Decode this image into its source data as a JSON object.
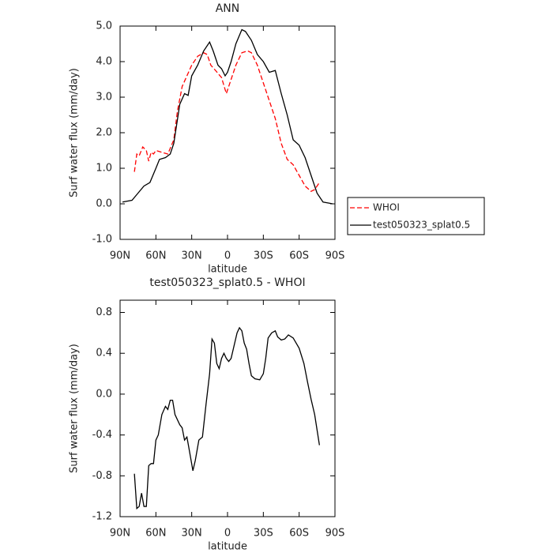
{
  "chart_data": [
    {
      "type": "line",
      "title": "ANN",
      "x_label": "latitude",
      "y_label": "Surf water flux (mm/day)",
      "xlim": [
        90,
        -90
      ],
      "ylim": [
        -1,
        5
      ],
      "xticks": [
        {
          "value": 90,
          "label": "90N"
        },
        {
          "value": 60,
          "label": "60N"
        },
        {
          "value": 30,
          "label": "30N"
        },
        0,
        {
          "value": -30,
          "label": "30S"
        },
        {
          "value": -60,
          "label": "60S"
        },
        {
          "value": -90,
          "label": "90S"
        }
      ],
      "yticks": [
        {
          "value": -1,
          "label": "-1.0"
        },
        {
          "value": 0,
          "label": "0.0"
        },
        {
          "value": 1,
          "label": "1.0"
        },
        {
          "value": 2,
          "label": "2.0"
        },
        {
          "value": 3,
          "label": "3.0"
        },
        {
          "value": 4,
          "label": "4.0"
        },
        {
          "value": 5,
          "label": "5.0"
        }
      ],
      "legend": "outside right",
      "series": [
        {
          "name": "WHOI",
          "color": "#ff0000",
          "dash": true,
          "x": [
            78,
            76,
            74,
            71,
            68,
            66,
            64,
            62,
            60,
            55,
            50,
            45,
            42,
            38,
            34,
            30,
            25,
            20,
            17,
            14,
            10,
            5,
            1,
            -3,
            -7,
            -12,
            -17,
            -20,
            -25,
            -30,
            -35,
            -40,
            -45,
            -50,
            -55,
            -60,
            -65,
            -70,
            -73,
            -77
          ],
          "values": [
            0.9,
            1.4,
            1.35,
            1.6,
            1.5,
            1.2,
            1.45,
            1.4,
            1.5,
            1.45,
            1.4,
            1.8,
            2.6,
            3.3,
            3.6,
            3.9,
            4.15,
            4.25,
            4.2,
            3.9,
            3.75,
            3.55,
            3.1,
            3.5,
            3.9,
            4.25,
            4.3,
            4.25,
            3.9,
            3.4,
            2.9,
            2.4,
            1.7,
            1.25,
            1.1,
            0.8,
            0.5,
            0.35,
            0.4,
            0.6
          ]
        },
        {
          "name": "test050323_splat0.5",
          "color": "#000000",
          "dash": false,
          "x": [
            88,
            80,
            75,
            70,
            65,
            60,
            57,
            52,
            48,
            45,
            40,
            36,
            33,
            30,
            25,
            20,
            15,
            12,
            8,
            5,
            2,
            0,
            -3,
            -7,
            -12,
            -15,
            -20,
            -25,
            -30,
            -35,
            -40,
            -45,
            -50,
            -55,
            -60,
            -65,
            -70,
            -75,
            -78,
            -80,
            -85,
            -88
          ],
          "values": [
            0.05,
            0.1,
            0.3,
            0.5,
            0.6,
            1.0,
            1.25,
            1.3,
            1.4,
            1.7,
            2.8,
            3.1,
            3.05,
            3.6,
            3.9,
            4.3,
            4.55,
            4.3,
            3.9,
            3.8,
            3.6,
            3.7,
            4.0,
            4.5,
            4.9,
            4.85,
            4.6,
            4.2,
            4.0,
            3.7,
            3.75,
            3.1,
            2.5,
            1.8,
            1.65,
            1.3,
            0.8,
            0.3,
            0.15,
            0.05,
            0.02,
            0.0
          ]
        }
      ]
    },
    {
      "type": "line",
      "title": "test050323_splat0.5 - WHOI",
      "x_label": "latitude",
      "y_label": "Surf water flux (mm/day)",
      "xlim": [
        90,
        -90
      ],
      "ylim": [
        -1.2,
        0.92
      ],
      "xticks": [
        {
          "value": 90,
          "label": "90N"
        },
        {
          "value": 60,
          "label": "60N"
        },
        {
          "value": 30,
          "label": "30N"
        },
        0,
        {
          "value": -30,
          "label": "30S"
        },
        {
          "value": -60,
          "label": "60S"
        },
        {
          "value": -90,
          "label": "90S"
        }
      ],
      "yticks": [
        -1.2,
        -0.8,
        -0.4,
        {
          "value": 0,
          "label": "0.0"
        },
        0.4,
        0.8
      ],
      "series": [
        {
          "color": "#000000",
          "dash": false,
          "x": [
            78,
            76,
            74,
            72,
            70,
            68,
            66,
            64,
            62,
            60,
            58,
            55,
            52,
            50,
            48,
            46,
            44,
            40,
            38,
            36,
            34,
            32,
            29,
            27,
            24,
            21,
            18,
            15,
            13,
            11,
            9,
            7,
            5,
            3,
            1,
            -1,
            -3,
            -5,
            -8,
            -10,
            -12,
            -14,
            -16,
            -18,
            -20,
            -23,
            -27,
            -30,
            -32,
            -34,
            -37,
            -40,
            -42,
            -45,
            -48,
            -51,
            -55,
            -60,
            -64,
            -67,
            -70,
            -73,
            -75,
            -77
          ],
          "values": [
            -0.78,
            -1.12,
            -1.1,
            -0.97,
            -1.1,
            -1.1,
            -0.7,
            -0.68,
            -0.68,
            -0.45,
            -0.4,
            -0.2,
            -0.12,
            -0.15,
            -0.06,
            -0.06,
            -0.2,
            -0.3,
            -0.33,
            -0.45,
            -0.42,
            -0.55,
            -0.75,
            -0.65,
            -0.45,
            -0.42,
            -0.1,
            0.2,
            0.54,
            0.5,
            0.3,
            0.25,
            0.35,
            0.4,
            0.35,
            0.32,
            0.35,
            0.45,
            0.6,
            0.65,
            0.62,
            0.5,
            0.44,
            0.3,
            0.18,
            0.15,
            0.14,
            0.2,
            0.35,
            0.55,
            0.6,
            0.62,
            0.56,
            0.53,
            0.54,
            0.58,
            0.55,
            0.45,
            0.3,
            0.12,
            -0.05,
            -0.2,
            -0.35,
            -0.5
          ]
        }
      ]
    }
  ]
}
